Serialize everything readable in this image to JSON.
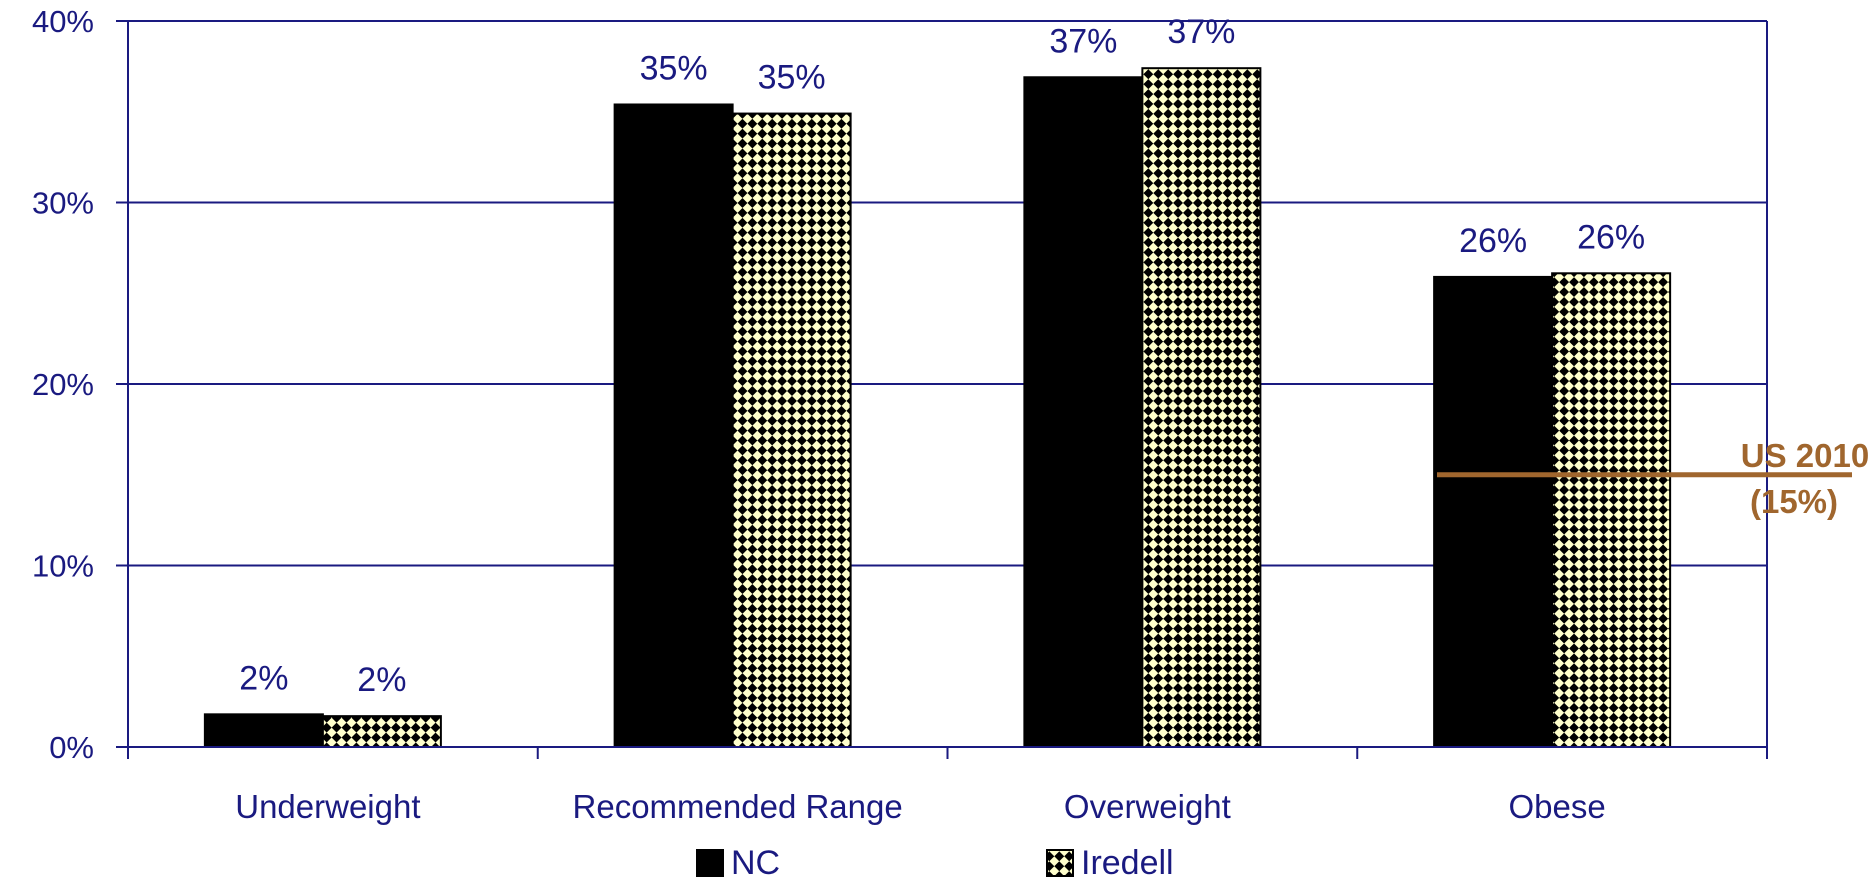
{
  "chart_data": {
    "type": "bar",
    "categories": [
      "Underweight",
      "Recommended Range",
      "Overweight",
      "Obese"
    ],
    "series": [
      {
        "name": "NC",
        "values": [
          1.8,
          35.4,
          36.9,
          25.9
        ],
        "labels": [
          "2%",
          "35%",
          "37%",
          "26%"
        ],
        "fill": "#000000",
        "pattern": "solid"
      },
      {
        "name": "Iredell",
        "values": [
          1.7,
          34.9,
          37.4,
          26.1
        ],
        "labels": [
          "2%",
          "35%",
          "37%",
          "26%"
        ],
        "fill": "#ffffcc",
        "pattern": "checker",
        "pattern_color": "#000000"
      }
    ],
    "title": "",
    "xlabel": "",
    "ylabel": "",
    "ylim": [
      0,
      40
    ],
    "yticks": [
      0,
      10,
      20,
      30,
      40
    ],
    "ytick_labels": [
      "0%",
      "10%",
      "20%",
      "30%",
      "40%"
    ],
    "grid": true,
    "grid_color": "#1a1a80",
    "text_color": "#1a1a80",
    "legend_position": "bottom",
    "reference_line": {
      "value": 15,
      "label_line1": "US 2010",
      "label_line2": "(15%)",
      "color": "#a0662e",
      "category": "Obese"
    }
  }
}
